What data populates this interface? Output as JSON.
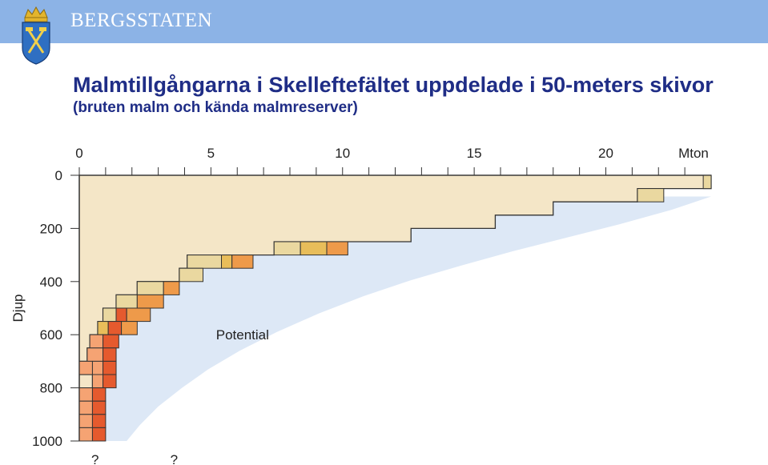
{
  "header": {
    "brand": "BERGSSTATEN",
    "title": "Malmtillgångarna i Skelleftefältet uppdelade i 50-meters skivor",
    "subtitle": "(bruten malm och kända malmreserver)"
  },
  "chart_data": {
    "type": "bar",
    "orientation": "horizontal-stacked",
    "xlabel": "Mton",
    "ylabel": "Djup",
    "xlim": [
      0,
      24
    ],
    "ylim": [
      0,
      1000
    ],
    "x_ticks": [
      0,
      5,
      10,
      15,
      20
    ],
    "y_ticks": [
      0,
      200,
      400,
      600,
      800,
      1000
    ],
    "slice_depth": 50,
    "annotations": [
      "Potential",
      "?",
      "?"
    ],
    "question_marks_x": [
      0.6,
      3.6
    ],
    "colors": {
      "envelope": "#f4e6c7",
      "potential": "#dde8f6",
      "tan": "#ead8a0",
      "gold": "#e8bd5a",
      "orange": "#ee9a4a",
      "red": "#e55a2e",
      "salmon": "#f5a373"
    },
    "slices": [
      {
        "depth": 0,
        "segments": [
          {
            "x0": 23.7,
            "x1": 24.0,
            "color": "tan"
          }
        ]
      },
      {
        "depth": 50,
        "segments": [
          {
            "x0": 21.2,
            "x1": 22.2,
            "color": "tan"
          }
        ]
      },
      {
        "depth": 100,
        "segments": []
      },
      {
        "depth": 150,
        "segments": []
      },
      {
        "depth": 200,
        "segments": []
      },
      {
        "depth": 250,
        "segments": [
          {
            "x0": 7.4,
            "x1": 8.4,
            "color": "tan"
          },
          {
            "x0": 8.4,
            "x1": 9.4,
            "color": "gold"
          },
          {
            "x0": 9.4,
            "x1": 10.2,
            "color": "orange"
          }
        ]
      },
      {
        "depth": 300,
        "segments": [
          {
            "x0": 4.1,
            "x1": 5.4,
            "color": "tan"
          },
          {
            "x0": 5.4,
            "x1": 5.8,
            "color": "gold"
          },
          {
            "x0": 5.8,
            "x1": 6.6,
            "color": "orange"
          }
        ]
      },
      {
        "depth": 350,
        "segments": [
          {
            "x0": 3.8,
            "x1": 4.7,
            "color": "tan"
          }
        ]
      },
      {
        "depth": 400,
        "segments": [
          {
            "x0": 2.2,
            "x1": 3.2,
            "color": "tan"
          },
          {
            "x0": 3.2,
            "x1": 3.8,
            "color": "orange"
          }
        ]
      },
      {
        "depth": 450,
        "segments": [
          {
            "x0": 1.4,
            "x1": 2.2,
            "color": "tan"
          },
          {
            "x0": 2.2,
            "x1": 3.2,
            "color": "orange"
          }
        ]
      },
      {
        "depth": 500,
        "segments": [
          {
            "x0": 0.9,
            "x1": 1.4,
            "color": "tan"
          },
          {
            "x0": 1.4,
            "x1": 1.8,
            "color": "red"
          },
          {
            "x0": 1.8,
            "x1": 2.7,
            "color": "orange"
          }
        ]
      },
      {
        "depth": 550,
        "segments": [
          {
            "x0": 0.7,
            "x1": 1.1,
            "color": "gold"
          },
          {
            "x0": 1.1,
            "x1": 1.6,
            "color": "red"
          },
          {
            "x0": 1.6,
            "x1": 2.2,
            "color": "orange"
          }
        ]
      },
      {
        "depth": 600,
        "segments": [
          {
            "x0": 0.4,
            "x1": 0.9,
            "color": "salmon"
          },
          {
            "x0": 0.9,
            "x1": 1.5,
            "color": "red"
          }
        ]
      },
      {
        "depth": 650,
        "segments": [
          {
            "x0": 0.3,
            "x1": 0.9,
            "color": "salmon"
          },
          {
            "x0": 0.9,
            "x1": 1.4,
            "color": "red"
          }
        ]
      },
      {
        "depth": 700,
        "segments": [
          {
            "x0": 0.0,
            "x1": 0.5,
            "color": "salmon"
          },
          {
            "x0": 0.5,
            "x1": 0.9,
            "color": "salmon"
          },
          {
            "x0": 0.9,
            "x1": 1.4,
            "color": "red"
          }
        ]
      },
      {
        "depth": 750,
        "segments": [
          {
            "x0": 0.5,
            "x1": 0.9,
            "color": "salmon"
          },
          {
            "x0": 0.9,
            "x1": 1.4,
            "color": "red"
          }
        ]
      },
      {
        "depth": 800,
        "segments": [
          {
            "x0": 0.0,
            "x1": 0.5,
            "color": "salmon"
          },
          {
            "x0": 0.5,
            "x1": 1.0,
            "color": "red"
          }
        ]
      },
      {
        "depth": 850,
        "segments": [
          {
            "x0": 0.0,
            "x1": 0.5,
            "color": "salmon"
          },
          {
            "x0": 0.5,
            "x1": 1.0,
            "color": "red"
          }
        ]
      },
      {
        "depth": 900,
        "segments": [
          {
            "x0": 0.0,
            "x1": 0.5,
            "color": "salmon"
          },
          {
            "x0": 0.5,
            "x1": 1.0,
            "color": "red"
          }
        ]
      },
      {
        "depth": 950,
        "segments": [
          {
            "x0": 0.0,
            "x1": 0.5,
            "color": "salmon"
          },
          {
            "x0": 0.5,
            "x1": 1.0,
            "color": "red"
          }
        ]
      }
    ],
    "envelope": [
      {
        "depth": 0,
        "x": 24.0
      },
      {
        "depth": 50,
        "x": 21.2
      },
      {
        "depth": 100,
        "x": 18.0
      },
      {
        "depth": 150,
        "x": 15.8
      },
      {
        "depth": 200,
        "x": 12.6
      },
      {
        "depth": 250,
        "x": 7.4
      },
      {
        "depth": 300,
        "x": 4.1
      },
      {
        "depth": 350,
        "x": 3.8
      },
      {
        "depth": 400,
        "x": 2.2
      },
      {
        "depth": 450,
        "x": 1.4
      },
      {
        "depth": 500,
        "x": 0.9
      },
      {
        "depth": 550,
        "x": 0.7
      },
      {
        "depth": 600,
        "x": 0.4
      },
      {
        "depth": 650,
        "x": 0.3
      },
      {
        "depth": 700,
        "x": 0.0
      },
      {
        "depth": 750,
        "x": 0.5
      },
      {
        "depth": 800,
        "x": 0.0
      },
      {
        "depth": 1000,
        "x": 0.0
      }
    ],
    "potential_curve": [
      [
        24.0,
        80
      ],
      [
        22.5,
        130
      ],
      [
        20.5,
        185
      ],
      [
        18.5,
        235
      ],
      [
        16.5,
        285
      ],
      [
        14.5,
        340
      ],
      [
        12.6,
        395
      ],
      [
        10.8,
        455
      ],
      [
        9.1,
        520
      ],
      [
        7.5,
        590
      ],
      [
        6.1,
        660
      ],
      [
        4.9,
        730
      ],
      [
        3.9,
        800
      ],
      [
        3.0,
        870
      ],
      [
        2.3,
        940
      ],
      [
        1.8,
        1000
      ]
    ]
  }
}
